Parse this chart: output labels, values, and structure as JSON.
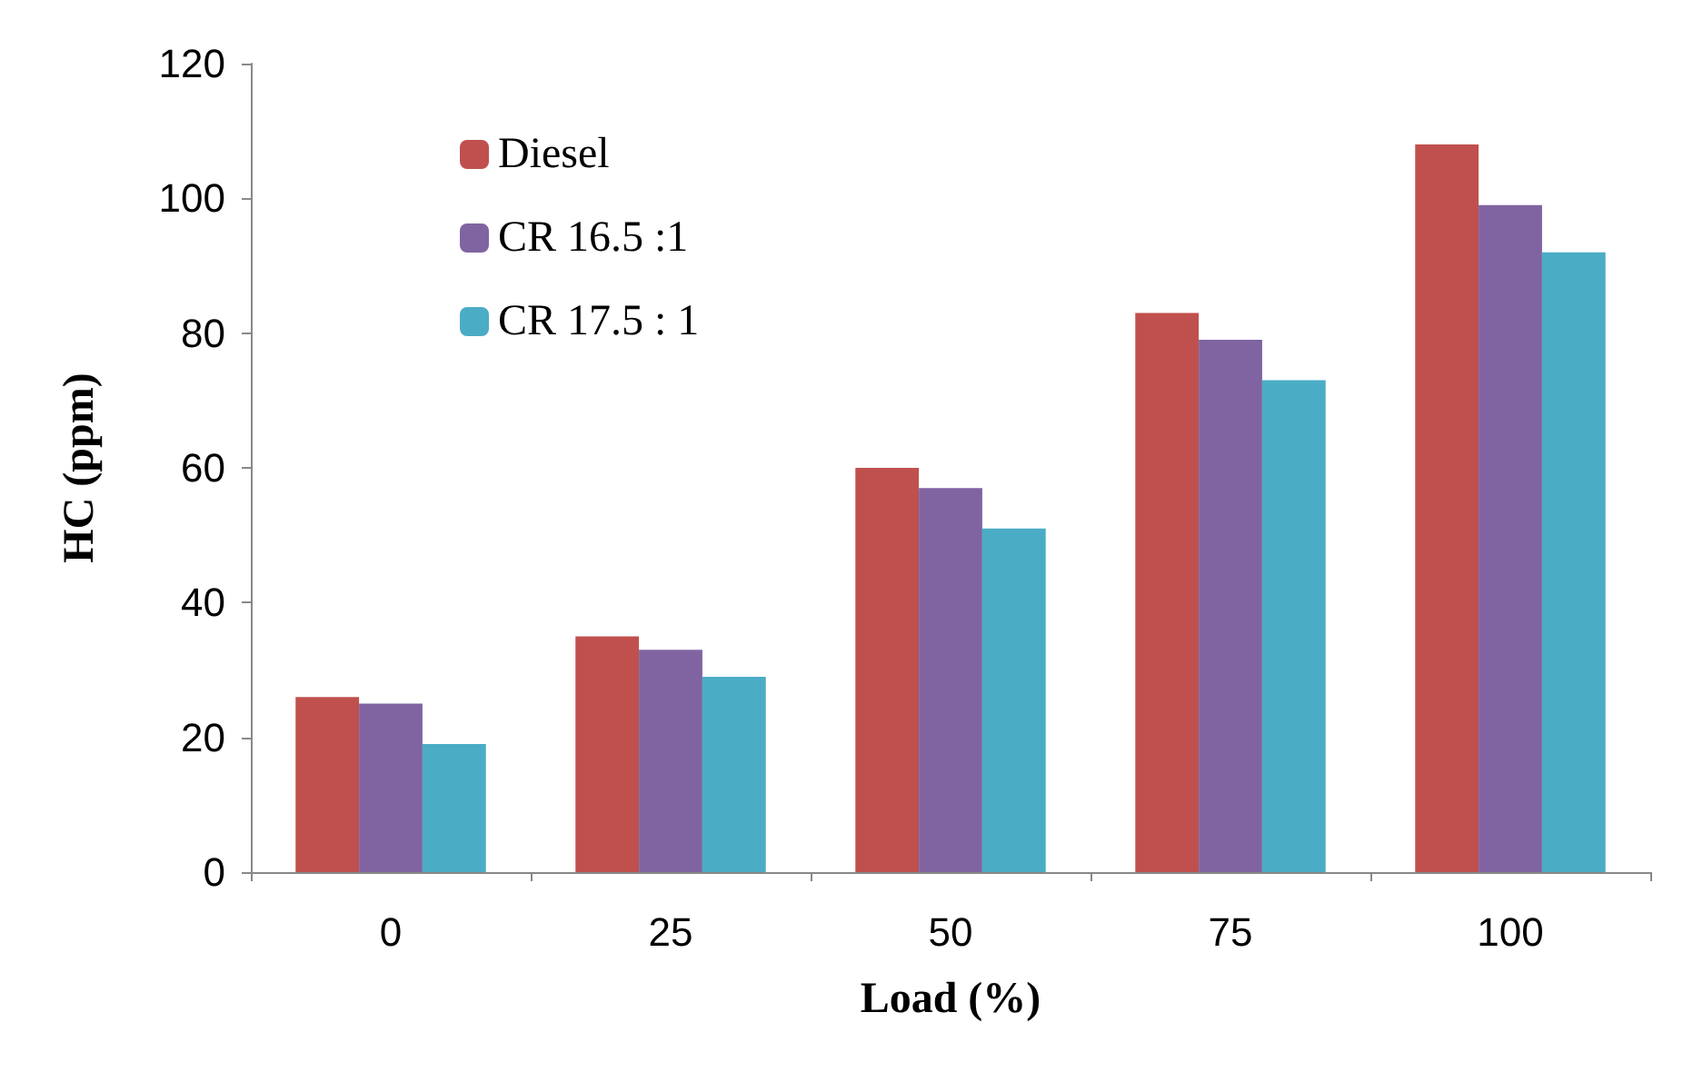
{
  "chart_data": {
    "type": "bar",
    "xlabel": "Load (%)",
    "ylabel": "HC (ppm)",
    "categories": [
      "0",
      "25",
      "50",
      "75",
      "100"
    ],
    "series": [
      {
        "name": "Diesel",
        "color": "#c0504d",
        "values": [
          26,
          35,
          60,
          83,
          108
        ]
      },
      {
        "name": "CR 16.5 :1",
        "color": "#8064a2",
        "values": [
          25,
          33,
          57,
          79,
          99
        ]
      },
      {
        "name": "CR 17.5 : 1",
        "color": "#4bacc6",
        "values": [
          19,
          29,
          51,
          73,
          92
        ]
      }
    ],
    "ylim": [
      0,
      120
    ],
    "yticks": [
      0,
      20,
      40,
      60,
      80,
      100,
      120
    ],
    "grid": false,
    "legend": "top left"
  }
}
